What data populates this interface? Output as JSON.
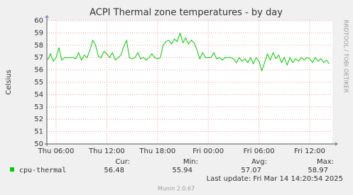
{
  "chart_data": {
    "type": "line",
    "title": "ACPI Thermal zone temperatures - by day",
    "y_label": "Celsius",
    "side_text": "RRDTOOL / TOBI OETIKER",
    "categories": [
      null,
      null,
      null,
      "Thu 06:00",
      null,
      null,
      null,
      null,
      null,
      null,
      null,
      null,
      null,
      null,
      null,
      null,
      null,
      null,
      null,
      null,
      null,
      "Thu 12:00",
      null,
      null,
      null,
      null,
      null,
      null,
      null,
      null,
      null,
      null,
      null,
      null,
      null,
      null,
      null,
      null,
      null,
      "Thu 18:00",
      null,
      null,
      null,
      null,
      null,
      null,
      null,
      null,
      null,
      null,
      null,
      null,
      null,
      null,
      null,
      null,
      null,
      "Fri 00:00",
      null,
      null,
      null,
      null,
      null,
      null,
      null,
      null,
      null,
      null,
      null,
      null,
      null,
      null,
      null,
      null,
      null,
      "Fri 06:00",
      null,
      null,
      null,
      null,
      null,
      null,
      null,
      null,
      null,
      null,
      null,
      null,
      null,
      null,
      null,
      null,
      null,
      "Fri 12:00",
      null,
      null,
      null,
      null,
      null,
      null,
      null
    ],
    "series": [
      {
        "name": "cpu-thermal",
        "color": "#00cc00",
        "values": [
          56.8,
          57.3,
          56.7,
          57.0,
          57.8,
          56.8,
          57.0,
          57.0,
          57.0,
          57.0,
          56.9,
          57.4,
          56.8,
          57.2,
          57.0,
          57.6,
          58.4,
          58.0,
          57.1,
          57.0,
          57.5,
          57.3,
          57.0,
          57.4,
          56.8,
          57.0,
          57.2,
          57.9,
          58.4,
          57.0,
          56.9,
          57.0,
          57.4,
          56.9,
          57.0,
          56.8,
          57.0,
          57.3,
          57.0,
          56.9,
          57.0,
          58.0,
          58.3,
          58.4,
          58.1,
          58.5,
          58.3,
          58.97,
          58.2,
          58.6,
          58.1,
          58.4,
          58.2,
          57.6,
          56.9,
          57.4,
          57.0,
          57.0,
          57.0,
          57.4,
          56.9,
          57.0,
          56.8,
          57.0,
          57.0,
          57.0,
          56.9,
          56.6,
          57.0,
          56.7,
          56.9,
          56.6,
          57.0,
          56.5,
          57.0,
          56.7,
          55.94,
          56.6,
          57.3,
          56.8,
          57.4,
          56.9,
          57.2,
          56.6,
          57.0,
          56.4,
          57.0,
          56.6,
          56.9,
          56.7,
          57.0,
          56.8,
          57.0,
          56.9,
          56.6,
          57.0,
          56.7,
          56.9,
          56.6,
          56.8,
          56.48
        ]
      }
    ],
    "ylim": [
      50,
      60
    ],
    "yticks": [
      50,
      51,
      52,
      53,
      54,
      55,
      56,
      57,
      58,
      59,
      60
    ],
    "grid": true,
    "stats": [
      {
        "label": "Cur:",
        "value": 56.48
      },
      {
        "label": "Min:",
        "value": 55.94
      },
      {
        "label": "Avg:",
        "value": 57.07
      },
      {
        "label": "Max:",
        "value": 58.97
      }
    ],
    "last_update": "Last update: Fri Mar 14 14:20:54 2025",
    "footer": "Munin 2.0.67"
  }
}
